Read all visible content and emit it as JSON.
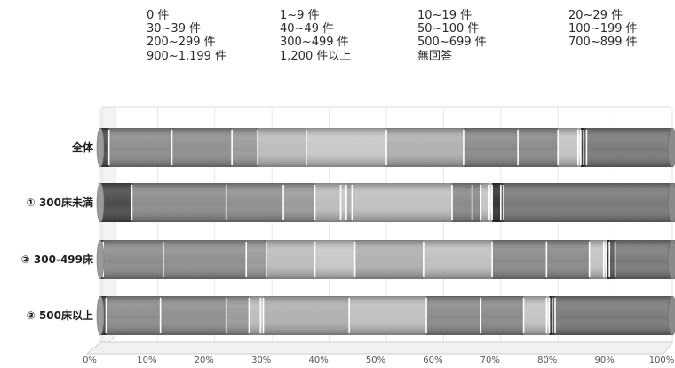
{
  "chart_data": {
    "type": "bar",
    "stacked": true,
    "orientation": "horizontal",
    "unit": "%",
    "legend": {
      "placement": "top",
      "entries": [
        "0 件",
        "1~9 件",
        "10~19 件",
        "20~29 件",
        "30~39 件",
        "40~49 件",
        "50~100 件",
        "100~199 件",
        "200~299 件",
        "300~499 件",
        "500~699 件",
        "700~899 件",
        "900~1,199 件",
        "1,200 件以上",
        "無回答"
      ]
    },
    "categories": [
      "全体",
      "① 300床未満",
      "② 300-499床",
      "③ 500床以上"
    ],
    "x_ticks": [
      "0%",
      "10%",
      "20%",
      "30%",
      "40%",
      "50%",
      "60%",
      "70%",
      "80%",
      "90%",
      "100%"
    ],
    "xlim": [
      0,
      100
    ],
    "series": [
      {
        "name": "0 件",
        "color": "#4a4a4a",
        "values": [
          1.5,
          5.5,
          0.5,
          1.0
        ]
      },
      {
        "name": "1~9 件",
        "color": "#8c8c8c",
        "values": [
          11.0,
          16.5,
          10.5,
          9.5
        ]
      },
      {
        "name": "10~19 件",
        "color": "#8f8f8f",
        "values": [
          10.5,
          10.0,
          14.5,
          11.5
        ]
      },
      {
        "name": "20~29 件",
        "color": "#9a9a9a",
        "values": [
          4.5,
          5.5,
          3.5,
          4.0
        ]
      },
      {
        "name": "30~39 件",
        "color": "#bdbdbd",
        "values": [
          8.5,
          4.5,
          8.5,
          2.0
        ]
      },
      {
        "name": "40~49 件",
        "color": "#c8c8c8",
        "values": [
          14.0,
          1.0,
          7.0,
          0.5
        ]
      },
      {
        "name": "50~100 件",
        "color": "#b0b0b0",
        "values": [
          13.5,
          1.0,
          12.0,
          15.0
        ]
      },
      {
        "name": "100~199 件",
        "color": "#c0c0c0",
        "values": [
          0.0,
          17.5,
          12.0,
          13.5
        ]
      },
      {
        "name": "200~299 件",
        "color": "#8a8a8a",
        "values": [
          9.5,
          3.5,
          9.5,
          9.5
        ]
      },
      {
        "name": "300~499 件",
        "color": "#8a8a8a",
        "values": [
          7.0,
          1.5,
          7.5,
          7.5
        ]
      },
      {
        "name": "500~699 件",
        "color": "#c4c4c4",
        "values": [
          3.5,
          1.5,
          2.5,
          4.0
        ]
      },
      {
        "name": "700~899 件",
        "color": "#eaeaea",
        "values": [
          0.5,
          0.5,
          0.5,
          0.5
        ]
      },
      {
        "name": "900~1,199 件",
        "color": "#333333",
        "values": [
          0.5,
          1.5,
          0.5,
          0.5
        ]
      },
      {
        "name": "1,200 件以上",
        "color": "#5a5a5a",
        "values": [
          0.5,
          0.5,
          1.0,
          0.5
        ]
      },
      {
        "name": "無回答",
        "color": "#7a7a7a",
        "values": [
          15.0,
          30.0,
          10.5,
          20.5
        ]
      }
    ]
  }
}
